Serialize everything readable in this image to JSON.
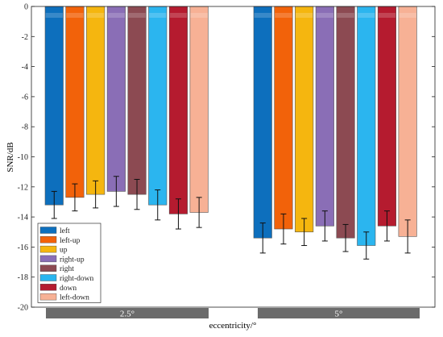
{
  "chart_data": {
    "type": "bar",
    "xlabel": "eccentricity/°",
    "ylabel": "SNR/dB",
    "ylim": [
      -20,
      0
    ],
    "yticks": [
      0,
      -2,
      -4,
      -6,
      -8,
      -10,
      -12,
      -14,
      -16,
      -18,
      -20
    ],
    "grid": false,
    "legend_position": "bottom-left",
    "categories": [
      "2.5°",
      "5°"
    ],
    "series": [
      {
        "name": "left",
        "color": "#0d6fbd",
        "values": [
          -13.2,
          -15.4
        ],
        "errors": [
          0.9,
          1.0
        ]
      },
      {
        "name": "left-up",
        "color": "#f2620a",
        "values": [
          -12.7,
          -14.8
        ],
        "errors": [
          0.9,
          1.0
        ]
      },
      {
        "name": "up",
        "color": "#f5b60f",
        "values": [
          -12.5,
          -15.0
        ],
        "errors": [
          0.9,
          0.9
        ]
      },
      {
        "name": "right-up",
        "color": "#8a6eb6",
        "values": [
          -12.3,
          -14.6
        ],
        "errors": [
          1.0,
          1.0
        ]
      },
      {
        "name": "right",
        "color": "#8c4a52",
        "values": [
          -12.5,
          -15.4
        ],
        "errors": [
          1.0,
          0.9
        ]
      },
      {
        "name": "right-down",
        "color": "#2bb5ef",
        "values": [
          -13.2,
          -15.9
        ],
        "errors": [
          1.0,
          0.9
        ]
      },
      {
        "name": "down",
        "color": "#b51b2f",
        "values": [
          -13.8,
          -14.6
        ],
        "errors": [
          1.0,
          1.0
        ]
      },
      {
        "name": "left-down",
        "color": "#f7b195",
        "values": [
          -13.7,
          -15.3
        ],
        "errors": [
          1.0,
          1.1
        ]
      }
    ]
  }
}
